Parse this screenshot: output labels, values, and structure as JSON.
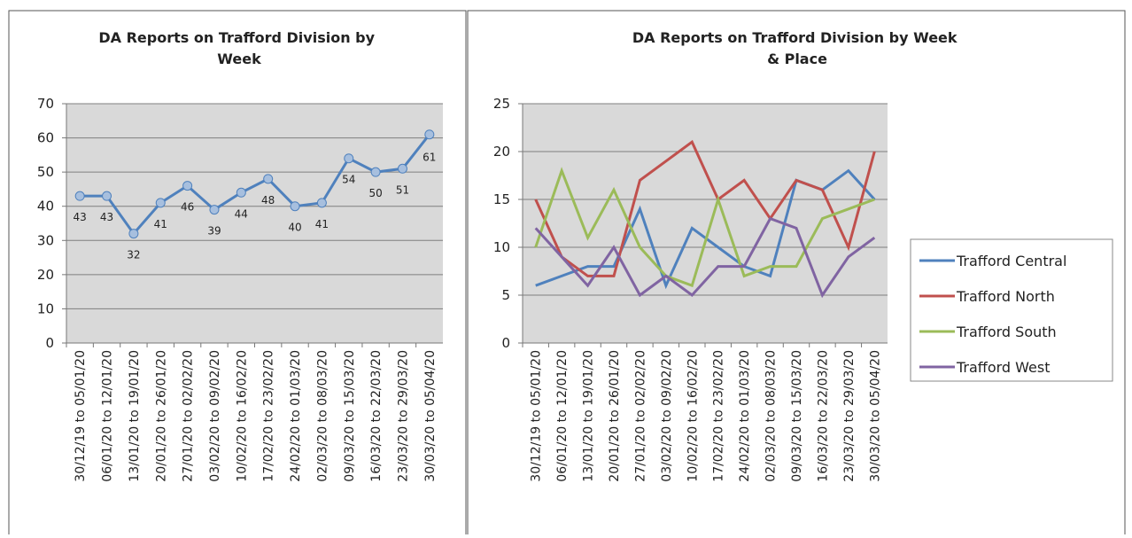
{
  "chart_data": [
    {
      "type": "line",
      "title": "DA Reports on Trafford Division by Week",
      "categories": [
        "30/12/19 to 05/01/20",
        "06/01/20 to 12/01/20",
        "13/01/20 to 19/01/20",
        "20/01/20 to 26/01/20",
        "27/01/20 to 02/02/20",
        "03/02/20 to 09/02/20",
        "10/02/20 to 16/02/20",
        "17/02/20 to 23/02/20",
        "24/02/20 to 01/03/20",
        "02/03/20 to 08/03/20",
        "09/03/20 to 15/03/20",
        "16/03/20 to 22/03/20",
        "23/03/20 to 29/03/20",
        "30/03/20 to 05/04/20"
      ],
      "values": [
        43,
        43,
        32,
        41,
        46,
        39,
        44,
        48,
        40,
        41,
        54,
        50,
        51,
        61
      ],
      "color": "#4f81bd",
      "markers": true,
      "data_labels": true,
      "ylim": [
        0,
        70
      ],
      "yticks": [
        0,
        10,
        20,
        30,
        40,
        50,
        60,
        70
      ],
      "grid": true
    },
    {
      "type": "line",
      "title": "DA Reports on Trafford Division by Week & Place",
      "categories": [
        "30/12/19 to 05/01/20",
        "06/01/20 to 12/01/20",
        "13/01/20 to 19/01/20",
        "20/01/20 to 26/01/20",
        "27/01/20 to 02/02/20",
        "03/02/20 to 09/02/20",
        "10/02/20 to 16/02/20",
        "17/02/20 to 23/02/20",
        "24/02/20 to 01/03/20",
        "02/03/20 to 08/03/20",
        "09/03/20 to 15/03/20",
        "16/03/20 to 22/03/20",
        "23/03/20 to 29/03/20",
        "30/03/20 to 05/04/20"
      ],
      "series": [
        {
          "name": "Trafford Central",
          "color": "#4f81bd",
          "values": [
            6,
            7,
            8,
            8,
            14,
            6,
            12,
            10,
            8,
            7,
            17,
            16,
            18,
            15
          ]
        },
        {
          "name": "Trafford North",
          "color": "#c0504d",
          "values": [
            15,
            9,
            7,
            7,
            17,
            19,
            21,
            15,
            17,
            13,
            17,
            16,
            10,
            20
          ]
        },
        {
          "name": "Trafford South",
          "color": "#9bbb59",
          "values": [
            10,
            18,
            11,
            16,
            10,
            7,
            6,
            15,
            7,
            8,
            8,
            13,
            14,
            15
          ]
        },
        {
          "name": "Trafford West",
          "color": "#8064a2",
          "values": [
            12,
            9,
            6,
            10,
            5,
            7,
            5,
            8,
            8,
            13,
            12,
            5,
            9,
            11
          ]
        }
      ],
      "legend": "right",
      "ylim": [
        0,
        25
      ],
      "yticks": [
        0,
        5,
        10,
        15,
        20,
        25
      ],
      "grid": true
    }
  ]
}
